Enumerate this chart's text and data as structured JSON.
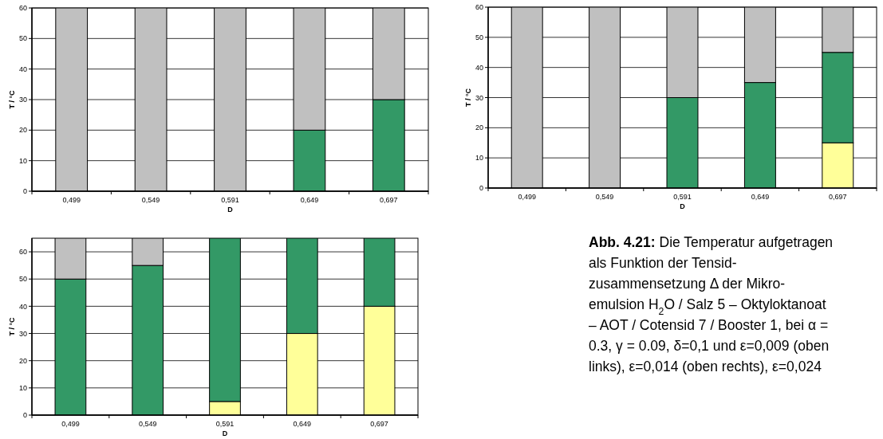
{
  "chart_data": [
    {
      "type": "bar",
      "stacked": true,
      "xlabel": "D",
      "ylabel": "T / °C",
      "categories": [
        "0,499",
        "0,549",
        "0,591",
        "0,649",
        "0,697"
      ],
      "ylim": [
        0,
        60
      ],
      "yticks": [
        0,
        10,
        20,
        30,
        40,
        50,
        60
      ],
      "grid": "y",
      "series": [
        {
          "color": "#339966",
          "values": [
            null,
            null,
            null,
            20,
            30
          ]
        },
        {
          "color": "#c0c0c0",
          "values": [
            60,
            60,
            60,
            40,
            30
          ]
        }
      ]
    },
    {
      "type": "bar",
      "stacked": true,
      "xlabel": "D",
      "ylabel": "T / °C",
      "categories": [
        "0,499",
        "0,549",
        "0,591",
        "0,649",
        "0,697"
      ],
      "ylim": [
        0,
        60
      ],
      "yticks": [
        0,
        10,
        20,
        30,
        40,
        50,
        60
      ],
      "grid": "y",
      "series": [
        {
          "color": "#ffff99",
          "values": [
            null,
            null,
            null,
            null,
            15
          ]
        },
        {
          "color": "#339966",
          "values": [
            null,
            null,
            30,
            35,
            30
          ]
        },
        {
          "color": "#c0c0c0",
          "values": [
            60,
            60,
            30,
            25,
            15
          ]
        }
      ]
    },
    {
      "type": "bar",
      "stacked": true,
      "xlabel": "D",
      "ylabel": "T / °C",
      "categories": [
        "0,499",
        "0,549",
        "0,591",
        "0,649",
        "0,697"
      ],
      "ylim": [
        0,
        65
      ],
      "yticks": [
        0,
        10,
        20,
        30,
        40,
        50,
        60
      ],
      "grid": "y",
      "series": [
        {
          "color": "#ffff99",
          "values": [
            null,
            null,
            5,
            30,
            40
          ]
        },
        {
          "color": "#339966",
          "values": [
            50,
            55,
            60,
            35,
            25
          ]
        },
        {
          "color": "#c0c0c0",
          "values": [
            15,
            10,
            null,
            null,
            null
          ]
        }
      ]
    },
    {
      "type": "other",
      "title": "Abb. 4.21:",
      "annotations": [
        "Die Temperatur aufgetragen",
        "als Funktion der Tensid-",
        "zusammensetzung Δ der Mikro-",
        "emulsion H$_{2}$O / Salz 5 – Oktyloktanoat",
        "– AOT / Cotensid 7 / Booster 1, bei α =",
        "0.3, γ = 0.09, δ=0,1 und ε=0,009 (oben",
        "links), ε=0,014 (oben rechts), ε=0,024"
      ]
    }
  ]
}
